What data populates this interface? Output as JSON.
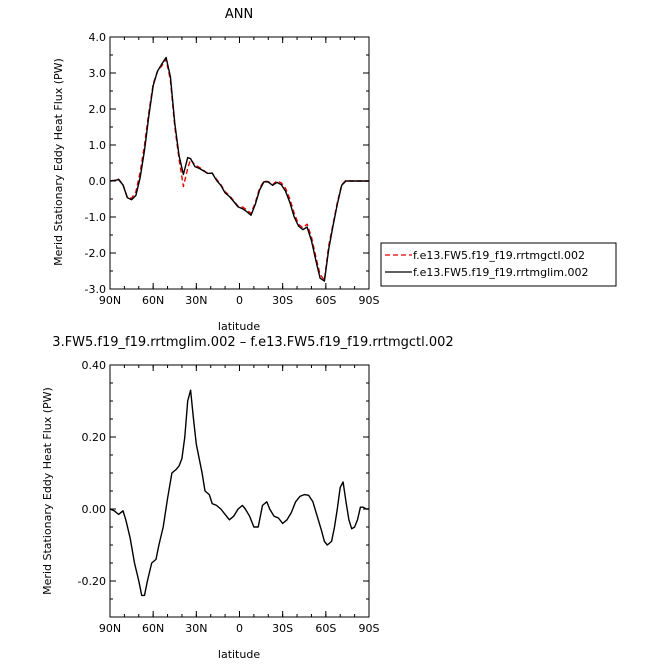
{
  "chart_data": [
    {
      "type": "line",
      "title": "ANN",
      "xlabel": "latitude",
      "ylabel": "Merid Stationary Eddy Heat Flux (PW)",
      "xlim": [
        -90,
        90
      ],
      "ylim": [
        -3.0,
        4.0
      ],
      "x_ticks": [
        -90,
        -60,
        -30,
        0,
        30,
        60,
        90
      ],
      "x_tick_labels": [
        "90N",
        "60N",
        "30N",
        "0",
        "30S",
        "60S",
        "90S"
      ],
      "y_ticks": [
        -3.0,
        -2.0,
        -1.0,
        0.0,
        1.0,
        2.0,
        3.0,
        4.0
      ],
      "y_tick_labels": [
        "-3.0",
        "-2.0",
        "-1.0",
        "0.0",
        "1.0",
        "2.0",
        "3.0",
        "4.0"
      ],
      "grid": false,
      "legend": "right",
      "x": [
        -90,
        -87,
        -84,
        -81,
        -78,
        -75,
        -72,
        -69,
        -66,
        -63,
        -60,
        -57,
        -54,
        -51,
        -48,
        -45,
        -42,
        -39,
        -36,
        -34,
        -31,
        -28,
        -25,
        -22,
        -19,
        -16,
        -13,
        -10,
        -7,
        -4,
        -1,
        2,
        5,
        8,
        11,
        14,
        17,
        20,
        23,
        26,
        29,
        32,
        35,
        38,
        41,
        44,
        47,
        50,
        53,
        56,
        59,
        62,
        65,
        68,
        71,
        74,
        77,
        80,
        83,
        86,
        88,
        90
      ],
      "series": [
        {
          "name": "f.e13.FW5.f19_f19.rrtmgctl.002",
          "color": "#e00000",
          "dash": "dashed",
          "values": [
            0.0,
            0.02,
            0.05,
            -0.1,
            -0.45,
            -0.48,
            -0.3,
            0.25,
            1.0,
            1.9,
            2.7,
            3.05,
            3.2,
            3.38,
            2.8,
            1.5,
            0.6,
            -0.15,
            0.35,
            0.6,
            0.45,
            0.38,
            0.3,
            0.2,
            0.22,
            0.05,
            -0.1,
            -0.3,
            -0.4,
            -0.55,
            -0.7,
            -0.72,
            -0.8,
            -0.9,
            -0.6,
            -0.2,
            0.0,
            -0.02,
            -0.1,
            0.0,
            -0.05,
            -0.2,
            -0.5,
            -0.9,
            -1.2,
            -1.3,
            -1.2,
            -1.55,
            -2.1,
            -2.6,
            -2.75,
            -1.8,
            -1.2,
            -0.6,
            -0.1,
            0.02,
            0.0,
            0.0,
            0.0,
            0.0,
            0.0,
            0.0
          ]
        },
        {
          "name": "f.e13.FW5.f19_f19.rrtmglim.002",
          "color": "#000000",
          "dash": "solid",
          "values": [
            0.0,
            0.01,
            0.04,
            -0.11,
            -0.46,
            -0.52,
            -0.4,
            0.1,
            0.85,
            1.8,
            2.65,
            3.05,
            3.25,
            3.43,
            2.9,
            1.6,
            0.7,
            0.18,
            0.65,
            0.62,
            0.4,
            0.35,
            0.28,
            0.21,
            0.22,
            0.02,
            -0.12,
            -0.33,
            -0.43,
            -0.57,
            -0.72,
            -0.77,
            -0.85,
            -0.95,
            -0.65,
            -0.25,
            -0.02,
            -0.03,
            -0.12,
            -0.04,
            -0.1,
            -0.28,
            -0.6,
            -1.0,
            -1.25,
            -1.35,
            -1.28,
            -1.65,
            -2.2,
            -2.7,
            -2.78,
            -1.9,
            -1.25,
            -0.65,
            -0.12,
            0.0,
            0.0,
            0.0,
            0.0,
            0.0,
            0.0,
            0.0
          ]
        }
      ]
    },
    {
      "type": "line",
      "title": "3.FW5.f19_f19.rrtmglim.002 – f.e13.FW5.f19_f19.rrtmgctl.002",
      "xlabel": "latitude",
      "ylabel": "Merid Stationary Eddy Heat Flux (PW)",
      "xlim": [
        -90,
        90
      ],
      "ylim": [
        -0.3,
        0.4
      ],
      "x_ticks": [
        -90,
        -60,
        -30,
        0,
        30,
        60,
        90
      ],
      "x_tick_labels": [
        "90N",
        "60N",
        "30N",
        "0",
        "30S",
        "60S",
        "90S"
      ],
      "y_ticks": [
        -0.2,
        0.0,
        0.2,
        0.4
      ],
      "y_tick_labels": [
        "-0.20",
        "0.00",
        "0.20",
        "0.40"
      ],
      "grid": false,
      "series": [
        {
          "color": "#000000",
          "dash": "solid",
          "x": [
            -90,
            -87,
            -84,
            -81,
            -79,
            -76,
            -73,
            -70,
            -68,
            -66,
            -64,
            -61,
            -58,
            -56,
            -53,
            -50,
            -47,
            -44,
            -42,
            -40,
            -38,
            -36,
            -34,
            -32,
            -30,
            -28,
            -26,
            -24,
            -21,
            -19,
            -16,
            -13,
            -10,
            -7,
            -4,
            -1,
            2,
            4,
            7,
            10,
            13,
            16,
            19,
            21,
            24,
            27,
            30,
            33,
            36,
            39,
            42,
            45,
            48,
            51,
            54,
            57,
            59,
            61,
            64,
            66,
            68,
            70,
            72,
            74,
            76,
            78,
            80,
            82,
            84,
            86,
            88,
            90
          ],
          "values": [
            0.0,
            -0.005,
            -0.015,
            -0.005,
            -0.03,
            -0.08,
            -0.15,
            -0.2,
            -0.24,
            -0.24,
            -0.2,
            -0.15,
            -0.14,
            -0.1,
            -0.05,
            0.03,
            0.1,
            0.11,
            0.12,
            0.14,
            0.2,
            0.3,
            0.33,
            0.25,
            0.18,
            0.14,
            0.1,
            0.05,
            0.04,
            0.015,
            0.01,
            0.0,
            -0.015,
            -0.03,
            -0.02,
            0.0,
            0.01,
            0.0,
            -0.02,
            -0.05,
            -0.05,
            0.01,
            0.02,
            0.0,
            -0.02,
            -0.025,
            -0.04,
            -0.03,
            -0.01,
            0.02,
            0.035,
            0.04,
            0.038,
            0.02,
            -0.02,
            -0.06,
            -0.09,
            -0.1,
            -0.09,
            -0.05,
            0.0,
            0.06,
            0.075,
            0.02,
            -0.03,
            -0.055,
            -0.05,
            -0.03,
            0.005,
            0.005,
            0.0,
            0.0
          ]
        }
      ]
    }
  ]
}
